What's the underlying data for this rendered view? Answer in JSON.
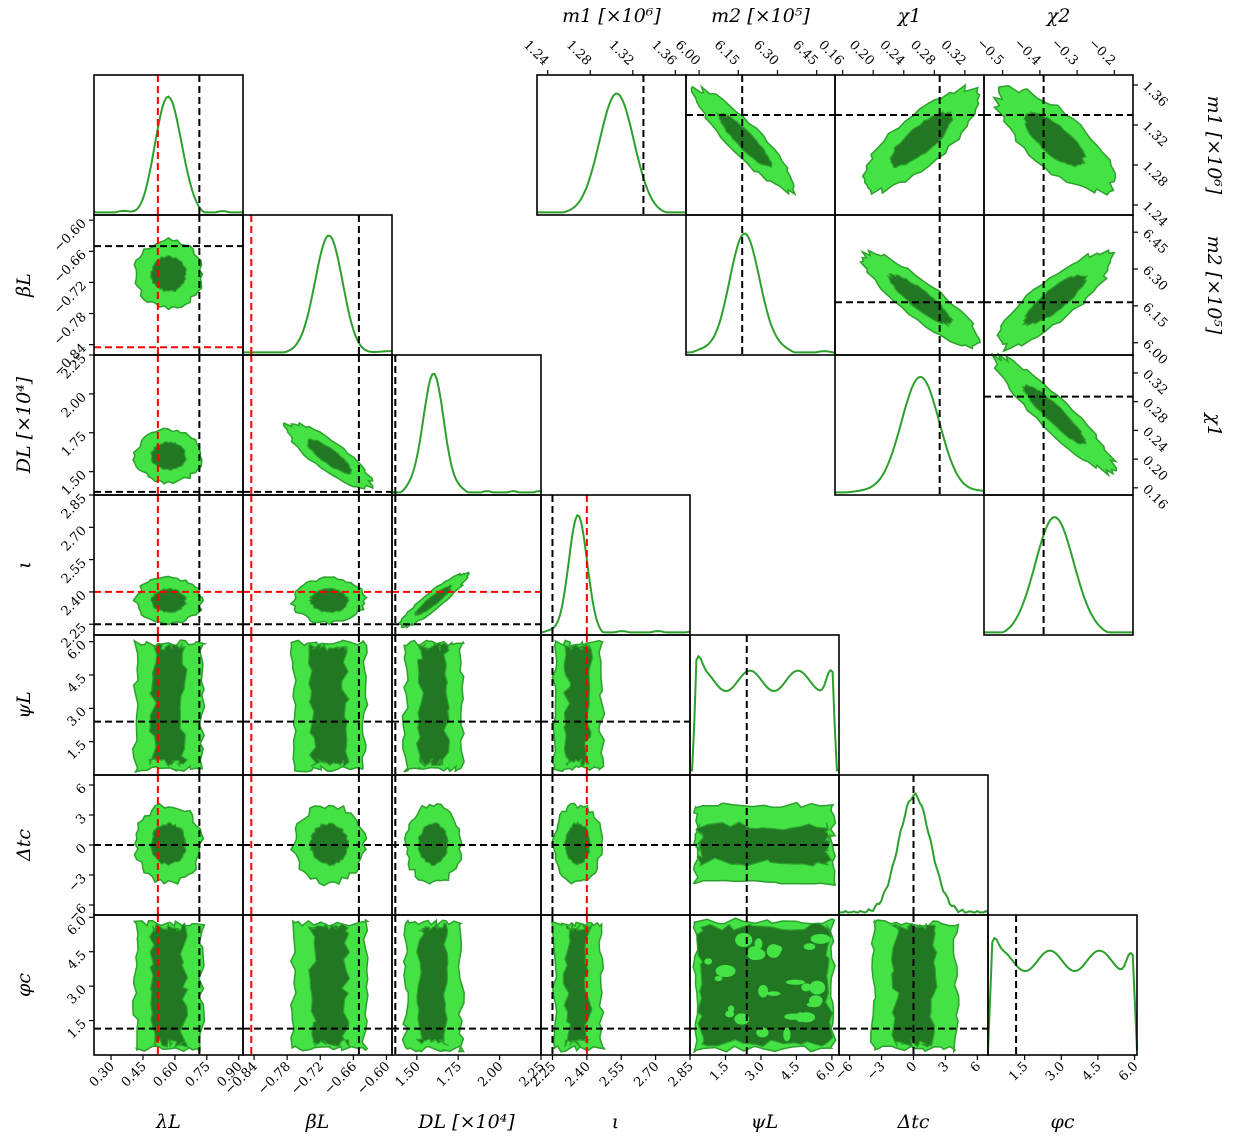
{
  "chart_data": {
    "type": "corner",
    "colors": {
      "line": "#2ca02c",
      "outer": "#44e244",
      "inner": "#227722",
      "truth": "#000000",
      "reference": "#ff0000"
    },
    "lower_triangle_params": [
      {
        "key": "lambda_L",
        "label": "λL",
        "range": [
          0.22,
          0.92
        ],
        "ticks": [
          "0.30",
          "0.45",
          "0.60",
          "0.75",
          "0.90"
        ],
        "tick_values": [
          0.3,
          0.45,
          0.6,
          0.75,
          0.9
        ],
        "truth": 0.715,
        "reference": 0.52,
        "posterior": {
          "mean": 0.57,
          "sd": 0.06,
          "min": 0.35,
          "max": 0.82
        }
      },
      {
        "key": "beta_L",
        "label": "βL",
        "range": [
          -0.86,
          -0.59
        ],
        "ticks": [
          "−0.84",
          "−0.78",
          "−0.72",
          "−0.66",
          "−0.60"
        ],
        "tick_values": [
          -0.84,
          -0.78,
          -0.72,
          -0.66,
          -0.6
        ],
        "truth": -0.65,
        "reference": -0.845,
        "posterior": {
          "mean": -0.704,
          "sd": 0.025,
          "min": -0.8,
          "max": -0.625
        }
      },
      {
        "key": "D_L",
        "label": "DL [×10⁴]",
        "range": [
          1.35,
          2.25
        ],
        "ticks": [
          "1.50",
          "1.75",
          "2.00",
          "2.25"
        ],
        "tick_values": [
          1.5,
          1.75,
          2.0,
          2.25
        ],
        "truth": 1.37,
        "reference": null,
        "posterior": {
          "mean": 1.6,
          "sd": 0.065,
          "min": 1.35,
          "max": 1.95
        }
      },
      {
        "key": "iota",
        "label": "ι",
        "range": [
          2.2,
          2.85
        ],
        "ticks": [
          "2.25",
          "2.40",
          "2.55",
          "2.70",
          "2.85"
        ],
        "tick_values": [
          2.25,
          2.4,
          2.55,
          2.7,
          2.85
        ],
        "truth": 2.25,
        "reference": 2.4,
        "posterior": {
          "mean": 2.36,
          "sd": 0.04,
          "min": 2.22,
          "max": 2.6
        }
      },
      {
        "key": "psi_L",
        "label": "ψL",
        "range": [
          0,
          6.3
        ],
        "ticks": [
          "1.5",
          "3.0",
          "4.5",
          "6.0"
        ],
        "tick_values": [
          1.5,
          3.0,
          4.5,
          6.0
        ],
        "truth": 2.4,
        "reference": null,
        "posterior": {
          "mean": 3.1,
          "sd": 1.8,
          "min": 0.1,
          "max": 6.2
        }
      },
      {
        "key": "dt_c",
        "label": "Δtc",
        "range": [
          -7,
          7
        ],
        "ticks": [
          "−6",
          "−3",
          "0",
          "3",
          "6"
        ],
        "tick_values": [
          -6,
          -3,
          0,
          3,
          6
        ],
        "truth": 0,
        "reference": null,
        "posterior": {
          "mean": 0.1,
          "sd": 1.5,
          "min": -5.5,
          "max": 5.5
        }
      },
      {
        "key": "phi_c",
        "label": "φc",
        "range": [
          0,
          6.1
        ],
        "ticks": [
          "1.5",
          "3.0",
          "4.5",
          "6.0"
        ],
        "tick_values": [
          1.5,
          3.0,
          4.5,
          6.0
        ],
        "truth": 1.15,
        "reference": null,
        "posterior": {
          "mean": 3.1,
          "sd": 1.8,
          "min": 0.0,
          "max": 6.1
        }
      }
    ],
    "upper_triangle_params": [
      {
        "key": "m1",
        "label": "m1 [×10⁶]",
        "range": [
          1.23,
          1.37
        ],
        "ticks": [
          "1.24",
          "1.28",
          "1.32",
          "1.36"
        ],
        "tick_values": [
          1.24,
          1.28,
          1.32,
          1.36
        ],
        "truth": 1.33,
        "posterior": {
          "mean": 1.305,
          "sd": 0.016,
          "min": 1.24,
          "max": 1.36
        }
      },
      {
        "key": "m2",
        "label": "m2 [×10⁵]",
        "range": [
          5.95,
          6.52
        ],
        "ticks": [
          "6.00",
          "6.15",
          "6.30",
          "6.45"
        ],
        "tick_values": [
          6.0,
          6.15,
          6.3,
          6.45
        ],
        "truth": 6.165,
        "posterior": {
          "mean": 6.175,
          "sd": 0.06,
          "min": 5.98,
          "max": 6.45
        }
      },
      {
        "key": "chi1",
        "label": "χ1",
        "range": [
          0.15,
          0.345
        ],
        "ticks": [
          "0.16",
          "0.20",
          "0.24",
          "0.28",
          "0.32"
        ],
        "tick_values": [
          0.16,
          0.2,
          0.24,
          0.28,
          0.32
        ],
        "truth": 0.287,
        "posterior": {
          "mean": 0.262,
          "sd": 0.025,
          "min": 0.17,
          "max": 0.34
        }
      },
      {
        "key": "chi2",
        "label": "χ2",
        "range": [
          -0.55,
          -0.15
        ],
        "ticks": [
          "−0.5",
          "−0.4",
          "−0.3",
          "−0.2"
        ],
        "tick_values": [
          -0.5,
          -0.4,
          -0.3,
          -0.2
        ],
        "truth": -0.39,
        "posterior": {
          "mean": -0.36,
          "sd": 0.05,
          "min": -0.52,
          "max": -0.19
        }
      }
    ],
    "upper_correlations": {
      "m1_m2": -0.9,
      "m1_chi1": 0.75,
      "m1_chi2": -0.7,
      "m2_chi1": -0.85,
      "m2_chi2": 0.8,
      "chi1_chi2": -0.97
    },
    "lower_correlations": {
      "beta_L-D_L": -0.8,
      "D_L-iota": 0.9
    }
  }
}
